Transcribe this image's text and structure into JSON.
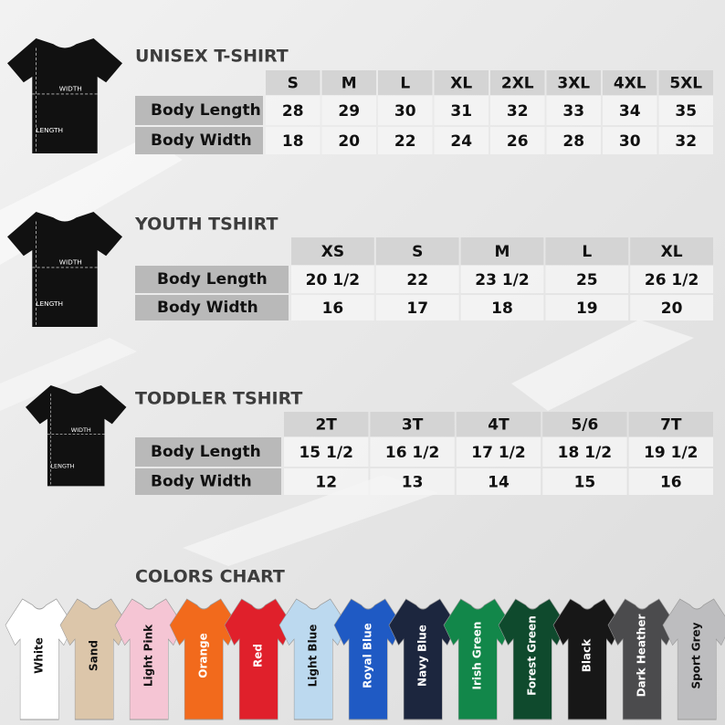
{
  "sections": [
    {
      "title": "UNISEX T-SHIRT",
      "icon_width": "WIDTH",
      "icon_length": "LENGTH",
      "headers": [
        "S",
        "M",
        "L",
        "XL",
        "2XL",
        "3XL",
        "4XL",
        "5XL"
      ],
      "rows": [
        {
          "label": "Body Length",
          "cells": [
            "28",
            "29",
            "30",
            "31",
            "32",
            "33",
            "34",
            "35"
          ]
        },
        {
          "label": "Body Width",
          "cells": [
            "18",
            "20",
            "22",
            "24",
            "26",
            "28",
            "30",
            "32"
          ]
        }
      ]
    },
    {
      "title": "YOUTH TSHIRT",
      "icon_width": "WIDTH",
      "icon_length": "LENGTH",
      "headers": [
        "XS",
        "S",
        "M",
        "L",
        "XL"
      ],
      "rows": [
        {
          "label": "Body Length",
          "cells": [
            "20 1/2",
            "22",
            "23 1/2",
            "25",
            "26 1/2"
          ]
        },
        {
          "label": "Body Width",
          "cells": [
            "16",
            "17",
            "18",
            "19",
            "20"
          ]
        }
      ]
    },
    {
      "title": "TODDLER TSHIRT",
      "icon_width": "WIDTH",
      "icon_length": "LENGTH",
      "headers": [
        "2T",
        "3T",
        "4T",
        "5/6",
        "7T"
      ],
      "rows": [
        {
          "label": "Body Length",
          "cells": [
            "15 1/2",
            "16 1/2",
            "17 1/2",
            "18 1/2",
            "19 1/2"
          ]
        },
        {
          "label": "Body Width",
          "cells": [
            "12",
            "13",
            "14",
            "15",
            "16"
          ]
        }
      ]
    }
  ],
  "colors_chart": {
    "title": "COLORS CHART",
    "colors": [
      {
        "name": "White",
        "color": "#ffffff"
      },
      {
        "name": "Sand",
        "color": "#dcc6aa"
      },
      {
        "name": "Light Pink",
        "color": "#f5c5d4"
      },
      {
        "name": "Orange",
        "color": "#f26a1c"
      },
      {
        "name": "Red",
        "color": "#e0202b"
      },
      {
        "name": "Light Blue",
        "color": "#bcd9ef"
      },
      {
        "name": "Royal Blue",
        "color": "#1f5ac4"
      },
      {
        "name": "Navy Blue",
        "color": "#1c263e"
      },
      {
        "name": "Irish Green",
        "color": "#12874a"
      },
      {
        "name": "Forest Green",
        "color": "#0f4a2d"
      },
      {
        "name": "Black",
        "color": "#171717"
      },
      {
        "name": "Dark Heather",
        "color": "#4b4b4d"
      },
      {
        "name": "Sport Grey",
        "color": "#bdbdbf"
      }
    ]
  }
}
